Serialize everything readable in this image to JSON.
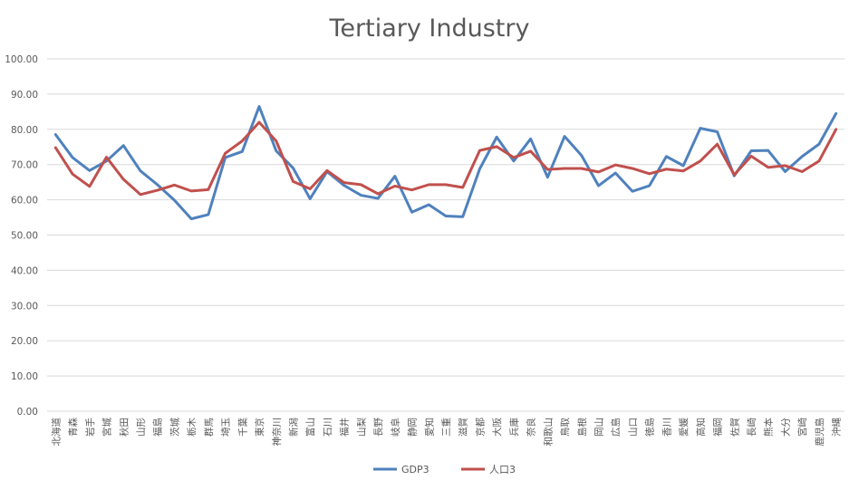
{
  "chart_data": {
    "type": "line",
    "title": "Tertiary Industry",
    "xlabel": "",
    "ylabel": "",
    "ylim": [
      0,
      100
    ],
    "ytick_step": 10,
    "ytick_format": "0.00",
    "grid": true,
    "legend_position": "bottom",
    "categories": [
      "北海道",
      "青森",
      "岩手",
      "宮城",
      "秋田",
      "山形",
      "福島",
      "茨城",
      "栃木",
      "群馬",
      "埼玉",
      "千葉",
      "東京",
      "神奈川",
      "新潟",
      "富山",
      "石川",
      "福井",
      "山梨",
      "長野",
      "岐阜",
      "静岡",
      "愛知",
      "三重",
      "滋賀",
      "京都",
      "大阪",
      "兵庫",
      "奈良",
      "和歌山",
      "鳥取",
      "島根",
      "岡山",
      "広島",
      "山口",
      "徳島",
      "香川",
      "愛媛",
      "高知",
      "福岡",
      "佐賀",
      "長崎",
      "熊本",
      "大分",
      "宮崎",
      "鹿児島",
      "沖縄"
    ],
    "series": [
      {
        "name": "GDP3",
        "color": "#4F81BD",
        "values": [
          78.5,
          72.0,
          68.3,
          71.0,
          75.4,
          68.2,
          64.3,
          59.9,
          54.6,
          55.8,
          72.0,
          73.7,
          86.5,
          73.9,
          69.0,
          60.3,
          68.0,
          64.1,
          61.3,
          60.4,
          66.7,
          56.5,
          58.6,
          55.4,
          55.2,
          68.8,
          77.8,
          71.0,
          77.3,
          66.4,
          78.0,
          72.6,
          64.0,
          67.6,
          62.4,
          64.0,
          72.3,
          69.7,
          80.3,
          79.3,
          66.8,
          73.9,
          74.0,
          68.0,
          72.3,
          75.8,
          84.5
        ]
      },
      {
        "name": "人口3",
        "color": "#C0504D",
        "values": [
          74.8,
          67.3,
          63.8,
          72.1,
          65.8,
          61.5,
          62.7,
          64.2,
          62.5,
          62.9,
          73.2,
          76.7,
          82.0,
          76.7,
          65.2,
          63.1,
          68.3,
          64.9,
          64.3,
          61.7,
          63.9,
          62.8,
          64.3,
          64.3,
          63.5,
          74.0,
          75.1,
          72.0,
          73.8,
          68.6,
          68.9,
          68.9,
          67.9,
          69.9,
          68.9,
          67.4,
          68.7,
          68.2,
          71.0,
          75.8,
          67.1,
          72.4,
          69.2,
          69.7,
          68.0,
          71.0,
          80.0
        ]
      }
    ]
  }
}
